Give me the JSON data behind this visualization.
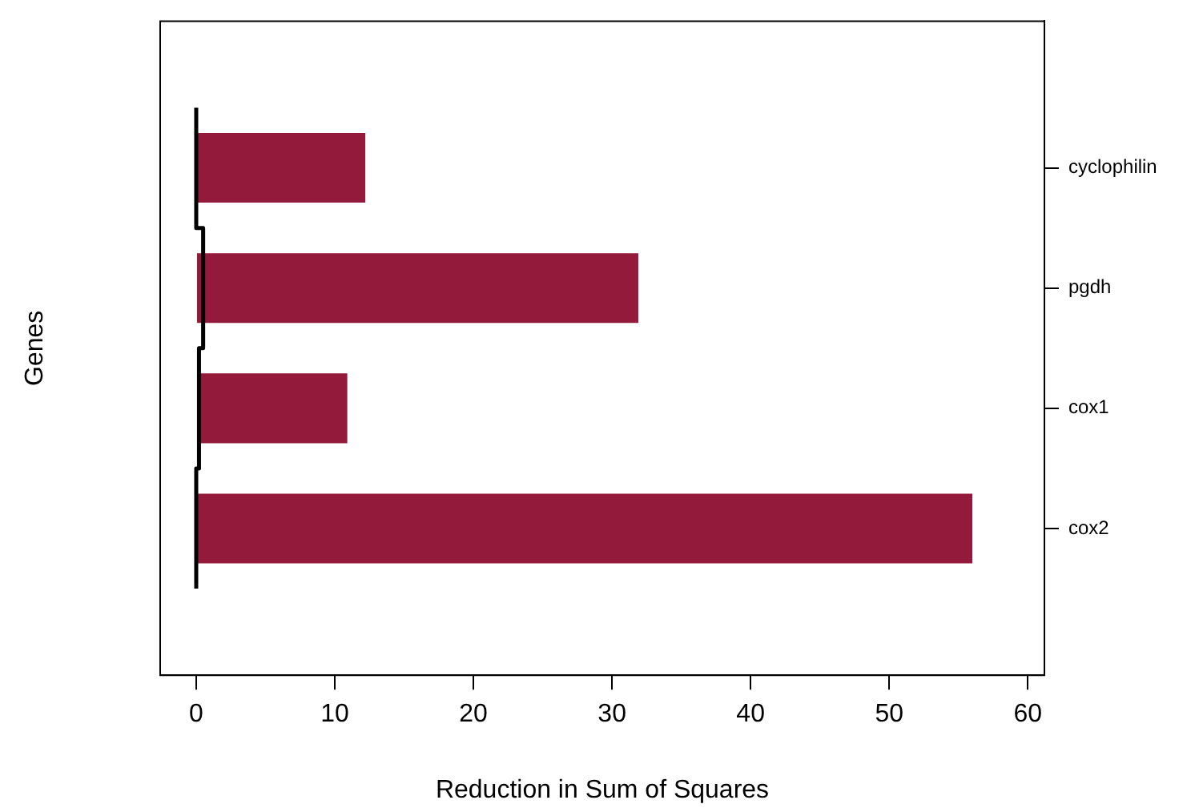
{
  "chart_data": {
    "type": "bar",
    "orientation": "horizontal",
    "xlabel": "Reduction in Sum of Squares",
    "ylabel": "Genes",
    "categories": [
      "cyclophilin",
      "pgdh",
      "cox1",
      "cox2"
    ],
    "series": [
      {
        "color": "#931a3b",
        "values": [
          12.2,
          31.9,
          10.9,
          56.0
        ]
      },
      {
        "type": "step",
        "color": "#000000",
        "values": [
          0,
          0.5,
          0.2,
          0
        ]
      }
    ],
    "xlim": [
      -2.6,
      61.2
    ],
    "xticks": [
      0,
      10,
      20,
      30,
      40,
      50,
      60
    ],
    "grid": false,
    "legend": false
  }
}
